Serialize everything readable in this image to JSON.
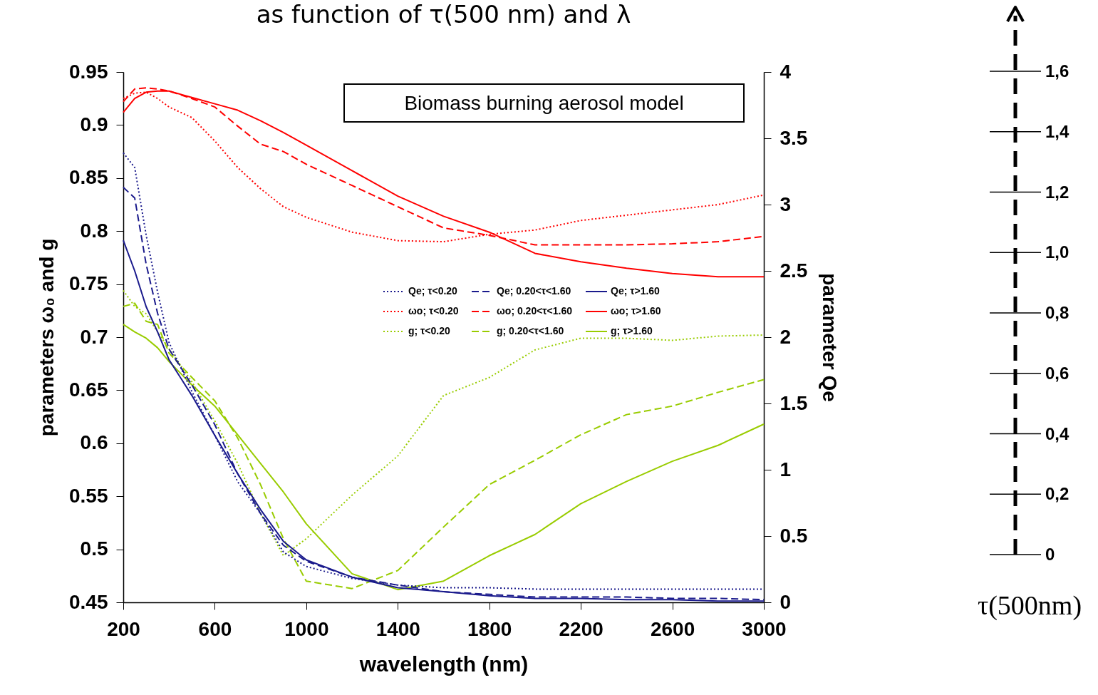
{
  "chart_data": {
    "type": "line",
    "title": "as function of τ(500 nm)  and λ",
    "xlabel": "wavelength (nm)",
    "ylabel": "parameters ω₀ and g",
    "y2label": "parameter Qe",
    "annotations": [
      "Biomass burning aerosol model",
      "0",
      "0,2",
      "0,4",
      "0,6",
      "0,8",
      "1,0",
      "1,2",
      "1,4",
      "1,6",
      "τ(500nm)"
    ],
    "xlim": [
      200,
      3000
    ],
    "xticks": [
      200,
      600,
      1000,
      1400,
      1800,
      2200,
      2600,
      3000
    ],
    "ylim": [
      0.45,
      0.95
    ],
    "yticks": [
      0.45,
      0.5,
      0.55,
      0.6,
      0.65,
      0.7,
      0.75,
      0.8,
      0.85,
      0.9,
      0.95
    ],
    "y2lim": [
      0,
      4
    ],
    "y2ticks": [
      0,
      0.5,
      1,
      1.5,
      2,
      2.5,
      3,
      3.5,
      4
    ],
    "grid": false,
    "legend": "right",
    "x": [
      200,
      250,
      300,
      350,
      400,
      500,
      600,
      700,
      800,
      900,
      1000,
      1200,
      1400,
      1600,
      1800,
      2000,
      2200,
      2400,
      2600,
      2800,
      3000
    ],
    "series": [
      {
        "name": "Qe; τ<0.20",
        "color": "#1a1a8c",
        "axis": "y2",
        "line_style": "dotted",
        "values": [
          3.39,
          3.28,
          2.77,
          2.34,
          1.96,
          1.59,
          1.26,
          0.91,
          0.67,
          0.38,
          0.27,
          0.18,
          0.13,
          0.11,
          0.11,
          0.1,
          0.1,
          0.1,
          0.1,
          0.1,
          0.1
        ]
      },
      {
        "name": "Qe; 0.20<τ<1.60",
        "color": "#1a1a8c",
        "axis": "y2",
        "line_style": "dashed",
        "values": [
          3.13,
          3.05,
          2.55,
          2.18,
          1.91,
          1.64,
          1.34,
          0.97,
          0.67,
          0.43,
          0.31,
          0.19,
          0.13,
          0.08,
          0.06,
          0.04,
          0.04,
          0.04,
          0.03,
          0.03,
          0.02
        ]
      },
      {
        "name": "Qe; τ>1.60",
        "color": "#1a1a8c",
        "axis": "y2",
        "line_style": "solid",
        "values": [
          2.73,
          2.5,
          2.23,
          2.04,
          1.83,
          1.56,
          1.26,
          0.97,
          0.7,
          0.46,
          0.32,
          0.19,
          0.11,
          0.08,
          0.05,
          0.03,
          0.03,
          0.02,
          0.02,
          0.01,
          0.01
        ]
      },
      {
        "name": "ωo; τ<0.20",
        "color": "#ff0000",
        "line_style": "dotted",
        "values": [
          0.925,
          0.93,
          0.931,
          0.925,
          0.917,
          0.907,
          0.885,
          0.86,
          0.84,
          0.823,
          0.813,
          0.799,
          0.791,
          0.79,
          0.797,
          0.801,
          0.81,
          0.815,
          0.82,
          0.825,
          0.834
        ]
      },
      {
        "name": "ωo; 0.20<τ<1.60",
        "color": "#ff0000",
        "line_style": "dashed",
        "values": [
          0.922,
          0.934,
          0.935,
          0.934,
          0.932,
          0.925,
          0.917,
          0.899,
          0.882,
          0.875,
          0.863,
          0.843,
          0.823,
          0.803,
          0.796,
          0.787,
          0.787,
          0.787,
          0.788,
          0.79,
          0.795
        ]
      },
      {
        "name": "ωo; τ>1.60",
        "color": "#ff0000",
        "line_style": "solid",
        "values": [
          0.912,
          0.925,
          0.931,
          0.932,
          0.932,
          0.926,
          0.92,
          0.914,
          0.904,
          0.893,
          0.881,
          0.857,
          0.833,
          0.814,
          0.799,
          0.779,
          0.771,
          0.765,
          0.76,
          0.757,
          0.757
        ]
      },
      {
        "name": "g; τ<0.20",
        "color": "#99cc00",
        "line_style": "dotted",
        "values": [
          0.744,
          0.729,
          0.722,
          0.705,
          0.689,
          0.658,
          0.621,
          0.581,
          0.534,
          0.494,
          0.51,
          0.551,
          0.588,
          0.645,
          0.662,
          0.688,
          0.699,
          0.699,
          0.697,
          0.701,
          0.702
        ]
      },
      {
        "name": "g; 0.20<τ<1.60",
        "color": "#99cc00",
        "line_style": "dashed",
        "values": [
          0.729,
          0.732,
          0.715,
          0.712,
          0.685,
          0.662,
          0.64,
          0.605,
          0.561,
          0.51,
          0.47,
          0.463,
          0.48,
          0.521,
          0.561,
          0.584,
          0.608,
          0.627,
          0.635,
          0.648,
          0.66
        ]
      },
      {
        "name": "g; τ>1.60",
        "color": "#99cc00",
        "line_style": "solid",
        "values": [
          0.712,
          0.705,
          0.699,
          0.69,
          0.677,
          0.655,
          0.635,
          0.608,
          0.581,
          0.554,
          0.524,
          0.477,
          0.462,
          0.47,
          0.494,
          0.514,
          0.543,
          0.564,
          0.583,
          0.598,
          0.618
        ]
      }
    ]
  }
}
